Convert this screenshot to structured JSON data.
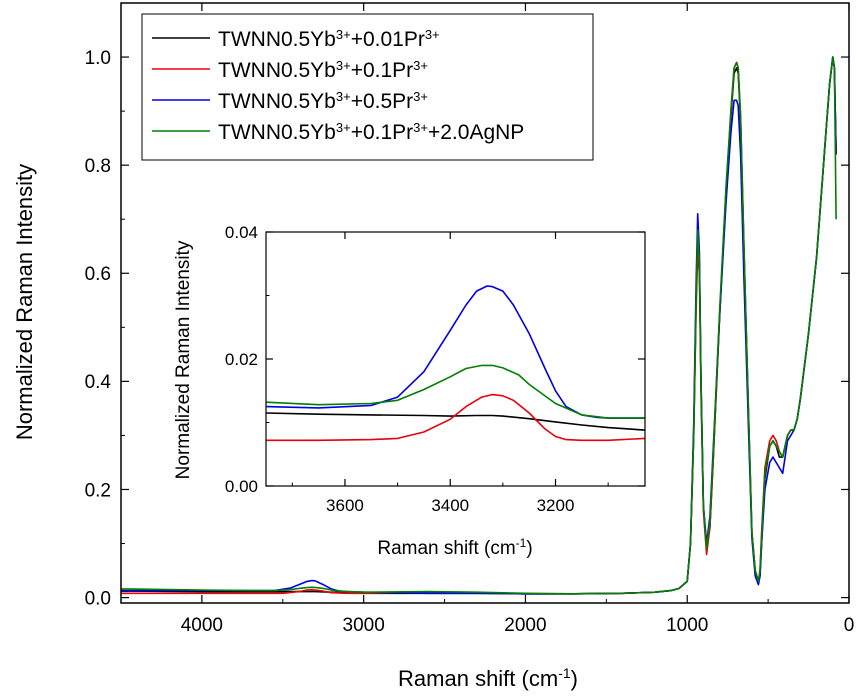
{
  "chart_data": [
    {
      "type": "line",
      "xlabel": "Raman shift (cm",
      "xlabel_sup": "-1",
      "xlabel_end": ")",
      "ylabel": "Normalized Raman Intensity",
      "xlim": [
        4500,
        0
      ],
      "ylim": [
        -0.01,
        1.1
      ],
      "x_ticks": [
        4000,
        3000,
        2000,
        1000,
        0
      ],
      "y_ticks": [
        0.0,
        0.2,
        0.4,
        0.6,
        0.8,
        1.0
      ],
      "x_tick_labels": [
        "4000",
        "3000",
        "2000",
        "1000",
        "0"
      ],
      "y_tick_labels": [
        "0.0",
        "0.2",
        "0.4",
        "0.6",
        "0.8",
        "1.0"
      ],
      "legend_position": "top-left",
      "series": [
        {
          "name": "TWNN0.5Yb3++0.01Pr3+",
          "color": "#000000",
          "legend": {
            "base": "TWNN0.5Yb",
            "sup1": "3+",
            "mid": "+0.01Pr",
            "sup2": "3+",
            "tail": ""
          },
          "x": [
            4500,
            4000,
            3600,
            3400,
            3300,
            3200,
            3000,
            2600,
            2300,
            2000,
            1700,
            1400,
            1200,
            1100,
            1050,
            1000,
            980,
            960,
            945,
            935,
            925,
            915,
            900,
            880,
            860,
            840,
            800,
            760,
            730,
            710,
            695,
            685,
            670,
            650,
            620,
            600,
            580,
            560,
            550,
            540,
            520,
            490,
            470,
            450,
            430,
            410,
            395,
            380,
            360,
            340,
            320,
            300,
            250,
            200,
            150,
            120,
            100,
            90,
            80
          ],
          "y": [
            0.012,
            0.011,
            0.011,
            0.011,
            0.011,
            0.01,
            0.008,
            0.008,
            0.008,
            0.007,
            0.007,
            0.008,
            0.01,
            0.013,
            0.017,
            0.03,
            0.1,
            0.3,
            0.55,
            0.67,
            0.62,
            0.4,
            0.17,
            0.09,
            0.13,
            0.25,
            0.52,
            0.75,
            0.89,
            0.97,
            0.98,
            0.97,
            0.88,
            0.65,
            0.32,
            0.12,
            0.05,
            0.03,
            0.04,
            0.1,
            0.22,
            0.28,
            0.29,
            0.28,
            0.26,
            0.26,
            0.28,
            0.3,
            0.31,
            0.31,
            0.33,
            0.37,
            0.49,
            0.63,
            0.83,
            0.95,
            1.0,
            0.98,
            0.82
          ]
        },
        {
          "name": "TWNN0.5Yb3++0.1Pr3+",
          "color": "#e8000b",
          "legend": {
            "base": "TWNN0.5Yb",
            "sup1": "3+",
            "mid": "+0.1Pr",
            "sup2": "3+",
            "tail": ""
          },
          "x": [
            4500,
            4000,
            3700,
            3500,
            3400,
            3350,
            3320,
            3300,
            3250,
            3200,
            3100,
            3000,
            2600,
            2300,
            2000,
            1700,
            1400,
            1200,
            1100,
            1050,
            1000,
            980,
            960,
            945,
            935,
            925,
            915,
            900,
            880,
            860,
            840,
            800,
            760,
            730,
            710,
            695,
            685,
            670,
            650,
            620,
            600,
            580,
            560,
            550,
            540,
            520,
            490,
            470,
            450,
            430,
            410,
            395,
            380,
            360,
            340,
            320,
            300,
            250,
            200,
            150,
            120,
            100,
            90,
            80
          ],
          "y": [
            0.008,
            0.008,
            0.008,
            0.008,
            0.011,
            0.014,
            0.0145,
            0.014,
            0.012,
            0.009,
            0.008,
            0.008,
            0.01,
            0.009,
            0.007,
            0.007,
            0.008,
            0.01,
            0.013,
            0.017,
            0.03,
            0.1,
            0.3,
            0.53,
            0.64,
            0.6,
            0.38,
            0.16,
            0.08,
            0.13,
            0.25,
            0.52,
            0.75,
            0.9,
            0.98,
            0.99,
            0.98,
            0.89,
            0.66,
            0.33,
            0.12,
            0.05,
            0.03,
            0.05,
            0.12,
            0.24,
            0.29,
            0.3,
            0.29,
            0.27,
            0.26,
            0.28,
            0.3,
            0.31,
            0.31,
            0.33,
            0.37,
            0.49,
            0.63,
            0.83,
            0.95,
            1.0,
            0.98,
            0.82
          ]
        },
        {
          "name": "TWNN0.5Yb3++0.5Pr3+",
          "color": "#0000e6",
          "legend": {
            "base": "TWNN0.5Yb",
            "sup1": "3+",
            "mid": "+0.5Pr",
            "sup2": "3+",
            "tail": ""
          },
          "x": [
            4500,
            4000,
            3700,
            3550,
            3450,
            3400,
            3350,
            3320,
            3300,
            3250,
            3200,
            3150,
            3100,
            3000,
            2600,
            2300,
            2000,
            1700,
            1400,
            1200,
            1100,
            1050,
            1000,
            980,
            960,
            945,
            935,
            925,
            915,
            900,
            880,
            860,
            840,
            800,
            760,
            730,
            710,
            695,
            685,
            670,
            650,
            620,
            600,
            580,
            560,
            550,
            540,
            520,
            490,
            470,
            450,
            430,
            410,
            395,
            380,
            360,
            340,
            320,
            300,
            250,
            200,
            150,
            120,
            100,
            90,
            80
          ],
          "y": [
            0.013,
            0.013,
            0.013,
            0.013,
            0.018,
            0.024,
            0.03,
            0.0315,
            0.031,
            0.024,
            0.016,
            0.012,
            0.011,
            0.01,
            0.008,
            0.008,
            0.007,
            0.007,
            0.008,
            0.01,
            0.013,
            0.017,
            0.03,
            0.1,
            0.32,
            0.58,
            0.71,
            0.64,
            0.4,
            0.17,
            0.1,
            0.15,
            0.27,
            0.52,
            0.73,
            0.86,
            0.92,
            0.92,
            0.91,
            0.82,
            0.6,
            0.3,
            0.11,
            0.04,
            0.024,
            0.04,
            0.1,
            0.2,
            0.25,
            0.26,
            0.25,
            0.24,
            0.23,
            0.26,
            0.29,
            0.3,
            0.31,
            0.33,
            0.37,
            0.49,
            0.63,
            0.83,
            0.95,
            1.0,
            0.98,
            0.82
          ]
        },
        {
          "name": "TWNN0.5Yb3++0.1Pr3++2.0AgNP",
          "color": "#007f00",
          "legend": {
            "base": "TWNN0.5Yb",
            "sup1": "3+",
            "mid": "+0.1Pr",
            "sup2": "3+",
            "tail": "+2.0AgNP"
          },
          "x": [
            4500,
            4000,
            3700,
            3550,
            3450,
            3400,
            3350,
            3320,
            3300,
            3250,
            3200,
            3150,
            3100,
            3000,
            2600,
            2300,
            2000,
            1700,
            1400,
            1200,
            1100,
            1050,
            1000,
            980,
            960,
            945,
            935,
            925,
            915,
            900,
            880,
            860,
            840,
            800,
            760,
            730,
            710,
            695,
            685,
            670,
            650,
            620,
            600,
            580,
            560,
            550,
            540,
            520,
            490,
            470,
            450,
            430,
            410,
            395,
            380,
            360,
            340,
            320,
            300,
            250,
            200,
            150,
            120,
            100,
            90,
            80
          ],
          "y": [
            0.016,
            0.014,
            0.013,
            0.013,
            0.015,
            0.017,
            0.0185,
            0.019,
            0.0188,
            0.017,
            0.014,
            0.012,
            0.011,
            0.01,
            0.011,
            0.01,
            0.008,
            0.007,
            0.008,
            0.01,
            0.013,
            0.017,
            0.03,
            0.1,
            0.3,
            0.55,
            0.68,
            0.62,
            0.4,
            0.17,
            0.09,
            0.14,
            0.26,
            0.53,
            0.76,
            0.9,
            0.98,
            0.99,
            0.98,
            0.89,
            0.66,
            0.33,
            0.12,
            0.05,
            0.03,
            0.05,
            0.11,
            0.23,
            0.28,
            0.29,
            0.28,
            0.27,
            0.26,
            0.28,
            0.3,
            0.31,
            0.31,
            0.33,
            0.37,
            0.49,
            0.63,
            0.83,
            0.95,
            1.0,
            0.98,
            0.7
          ]
        }
      ]
    },
    {
      "type": "line",
      "inset": true,
      "xlabel": "Raman shift (cm",
      "xlabel_sup": "-1",
      "xlabel_end": ")",
      "ylabel": "Normalized Raman Intensity",
      "xlim": [
        3750,
        3030
      ],
      "ylim": [
        0.0,
        0.04
      ],
      "x_ticks": [
        3600,
        3400,
        3200
      ],
      "y_ticks": [
        0.0,
        0.02,
        0.04
      ],
      "x_tick_labels": [
        "3600",
        "3400",
        "3200"
      ],
      "y_tick_labels": [
        "0.00",
        "0.02",
        "0.04"
      ],
      "series": [
        {
          "name": "TWNN0.5Yb3++0.01Pr3+",
          "color": "#000000",
          "x": [
            3750,
            3650,
            3550,
            3450,
            3400,
            3350,
            3320,
            3300,
            3250,
            3200,
            3150,
            3100,
            3030
          ],
          "y": [
            0.0115,
            0.0113,
            0.0112,
            0.0111,
            0.011,
            0.0111,
            0.0111,
            0.011,
            0.0106,
            0.0101,
            0.0096,
            0.0092,
            0.0088
          ]
        },
        {
          "name": "TWNN0.5Yb3++0.1Pr3+",
          "color": "#e8000b",
          "x": [
            3750,
            3650,
            3550,
            3500,
            3450,
            3400,
            3370,
            3340,
            3320,
            3300,
            3280,
            3250,
            3220,
            3200,
            3180,
            3150,
            3100,
            3030
          ],
          "y": [
            0.0072,
            0.0072,
            0.0073,
            0.0075,
            0.0085,
            0.0105,
            0.0125,
            0.014,
            0.0144,
            0.0142,
            0.0135,
            0.0115,
            0.009,
            0.0078,
            0.0073,
            0.0072,
            0.0072,
            0.0075
          ]
        },
        {
          "name": "TWNN0.5Yb3++0.5Pr3+",
          "color": "#0000e6",
          "x": [
            3750,
            3650,
            3550,
            3500,
            3450,
            3400,
            3370,
            3350,
            3330,
            3320,
            3300,
            3280,
            3250,
            3220,
            3200,
            3180,
            3150,
            3120,
            3100,
            3030
          ],
          "y": [
            0.0125,
            0.0123,
            0.0127,
            0.014,
            0.018,
            0.0245,
            0.0285,
            0.0307,
            0.0315,
            0.0314,
            0.0307,
            0.0285,
            0.024,
            0.0185,
            0.015,
            0.0125,
            0.0112,
            0.0108,
            0.0107,
            0.0107
          ]
        },
        {
          "name": "TWNN0.5Yb3++0.1Pr3++2.0AgNP",
          "color": "#007f00",
          "x": [
            3750,
            3650,
            3550,
            3500,
            3450,
            3400,
            3370,
            3340,
            3320,
            3300,
            3270,
            3250,
            3200,
            3150,
            3100,
            3030
          ],
          "y": [
            0.0132,
            0.0128,
            0.013,
            0.0135,
            0.0152,
            0.0172,
            0.0185,
            0.019,
            0.019,
            0.0186,
            0.0175,
            0.016,
            0.013,
            0.0112,
            0.0107,
            0.0107
          ]
        }
      ]
    }
  ]
}
